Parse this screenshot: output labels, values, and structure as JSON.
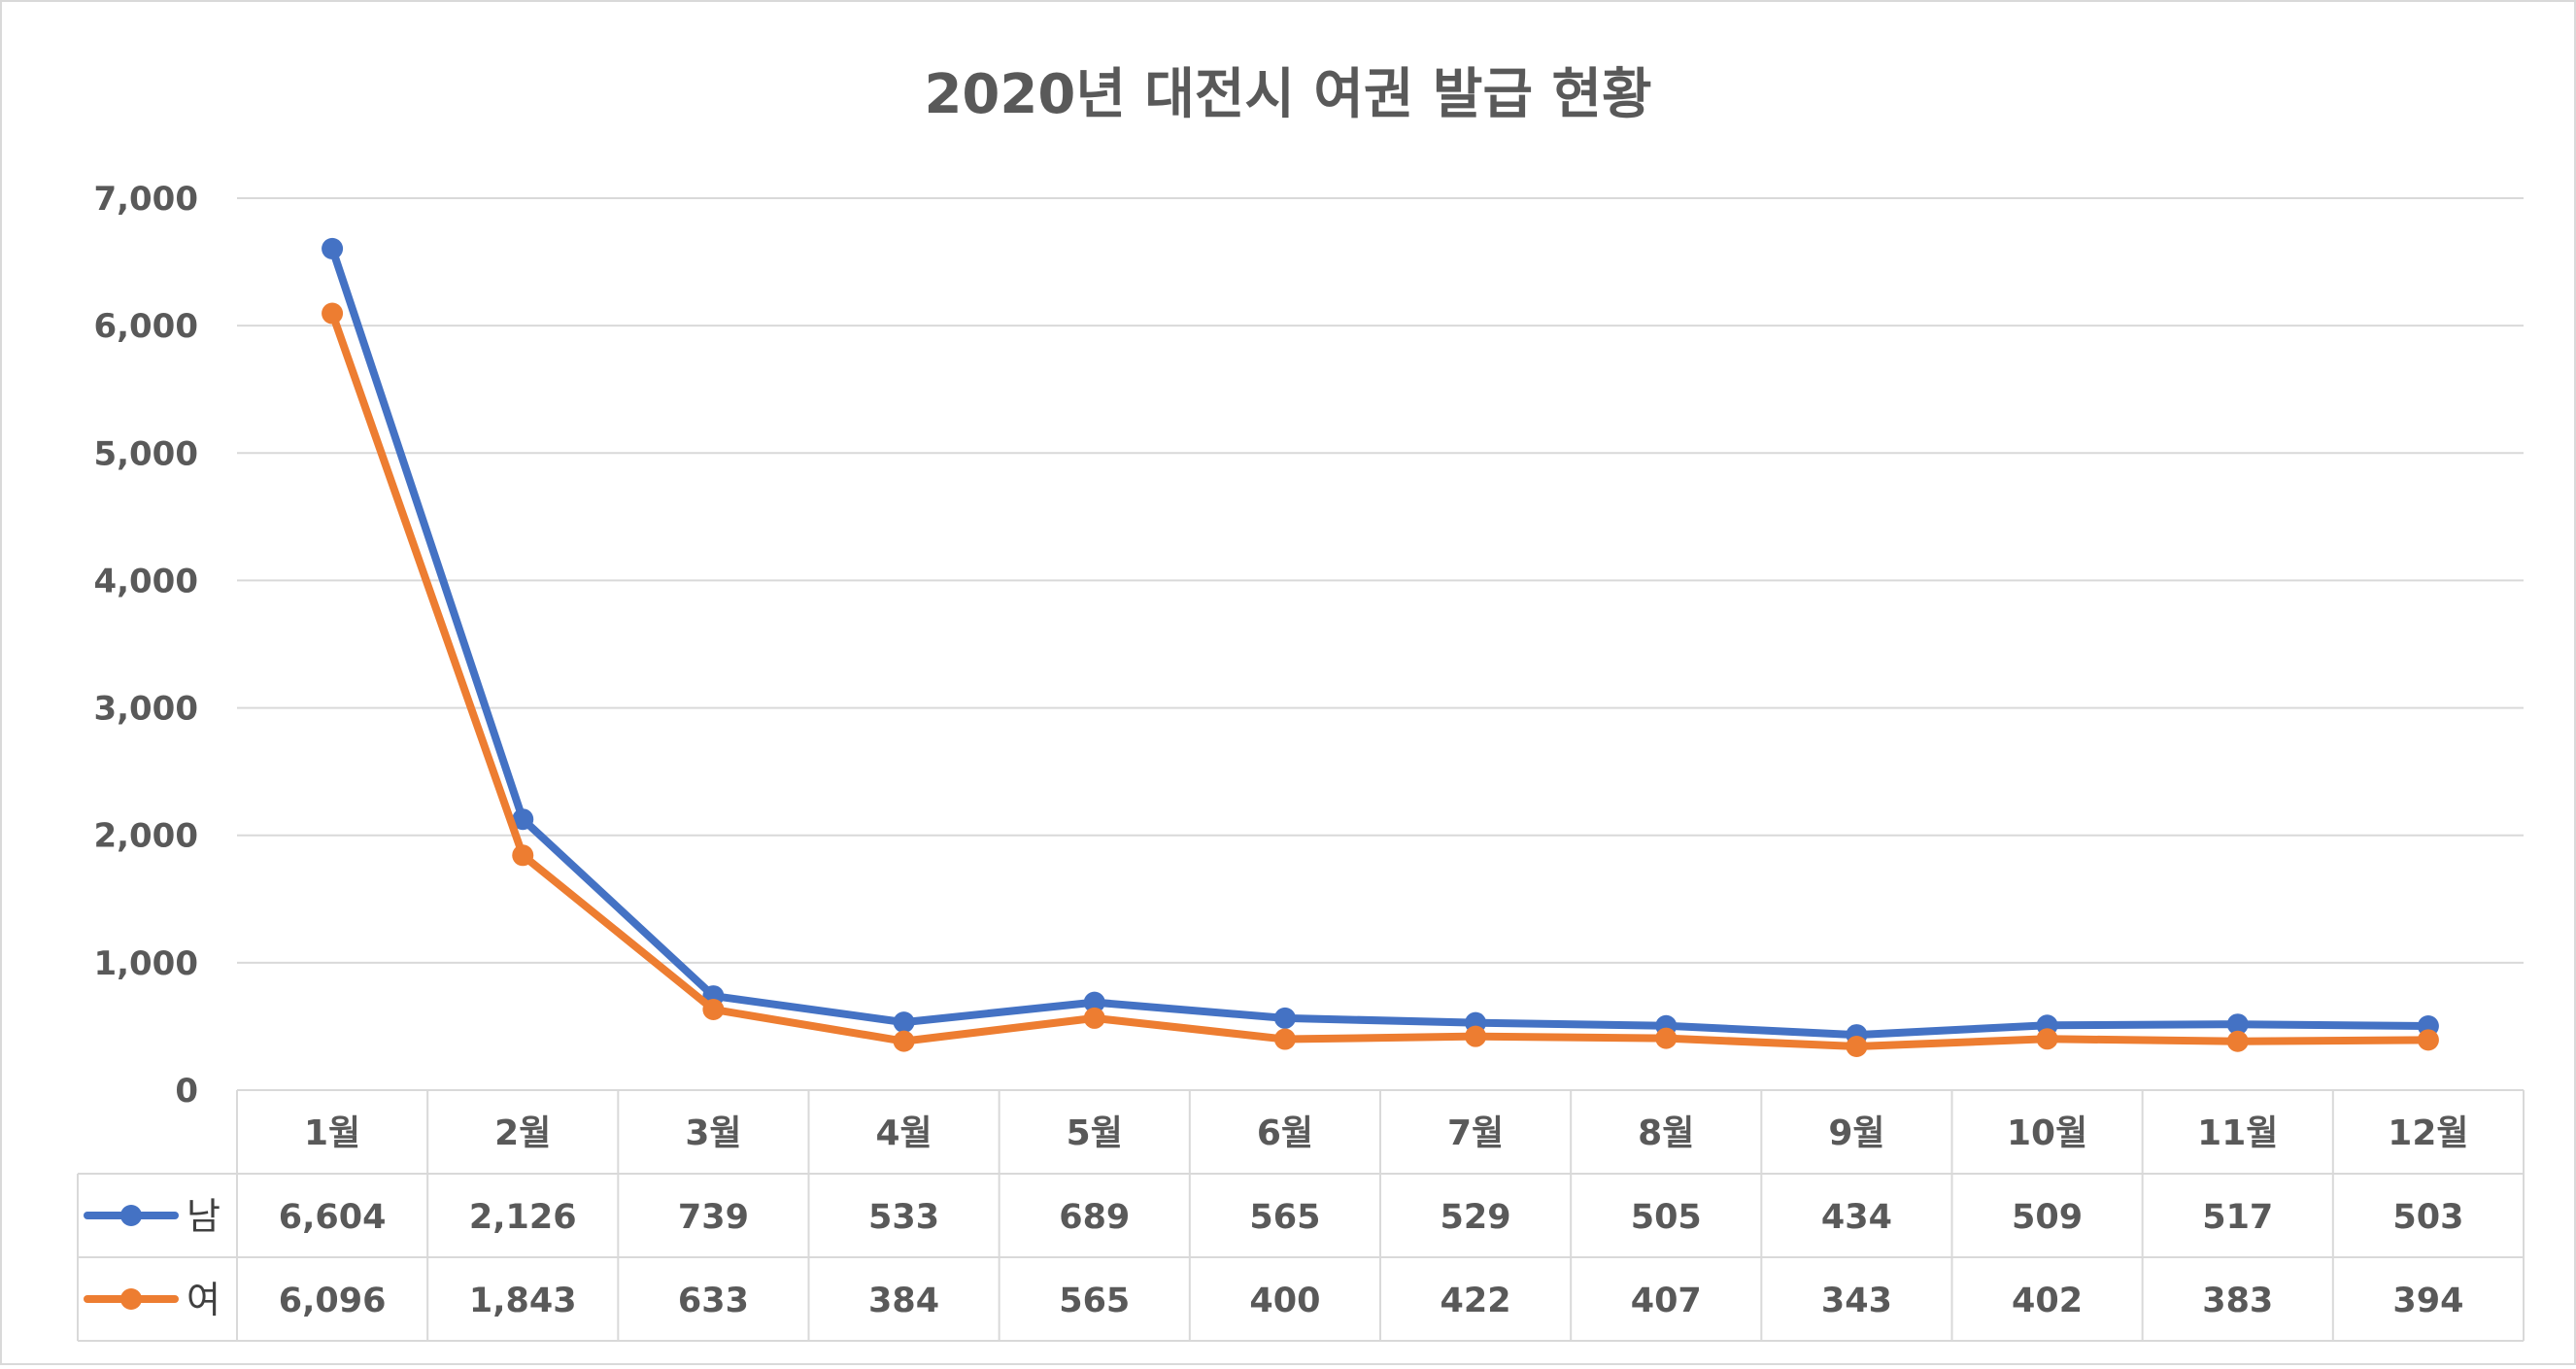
{
  "chart_data": {
    "type": "line",
    "title": "2020년 대전시 여권 발급 현황",
    "categories": [
      "1월",
      "2월",
      "3월",
      "4월",
      "5월",
      "6월",
      "7월",
      "8월",
      "9월",
      "10월",
      "11월",
      "12월"
    ],
    "series": [
      {
        "name": "남",
        "color": "#4472C4",
        "values": [
          6604,
          2126,
          739,
          533,
          689,
          565,
          529,
          505,
          434,
          509,
          517,
          503
        ],
        "labels": [
          "6,604",
          "2,126",
          "739",
          "533",
          "689",
          "565",
          "529",
          "505",
          "434",
          "509",
          "517",
          "503"
        ]
      },
      {
        "name": "여",
        "color": "#ED7D31",
        "values": [
          6096,
          1843,
          633,
          384,
          565,
          400,
          422,
          407,
          343,
          402,
          383,
          394
        ],
        "labels": [
          "6,096",
          "1,843",
          "633",
          "384",
          "565",
          "400",
          "422",
          "407",
          "343",
          "402",
          "383",
          "394"
        ]
      }
    ],
    "y_ticks": [
      "0",
      "1,000",
      "2,000",
      "3,000",
      "4,000",
      "5,000",
      "6,000",
      "7,000"
    ],
    "ylim": [
      0,
      7000
    ],
    "grid": true,
    "data_table": true
  }
}
